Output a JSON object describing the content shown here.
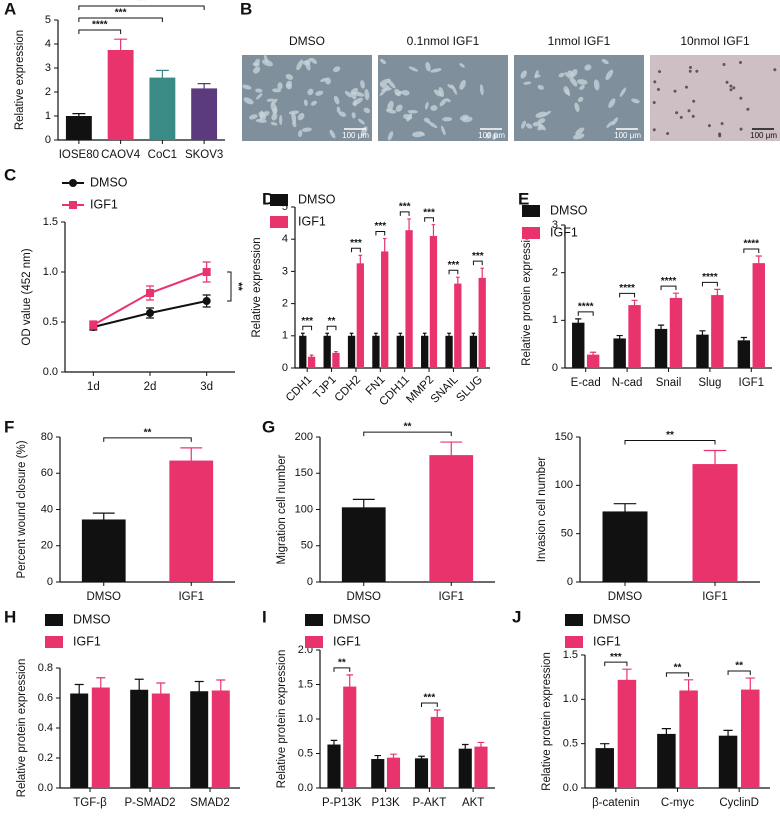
{
  "chart_data": [
    {
      "type": "bar",
      "panel": "A",
      "categories": [
        "IOSE80",
        "CAOV4",
        "CoC1",
        "SKOV3"
      ],
      "values": [
        1.0,
        3.75,
        2.6,
        2.15
      ],
      "errors": [
        0.1,
        0.45,
        0.3,
        0.2
      ],
      "colors": [
        "#111111",
        "#e8336d",
        "#3a8a85",
        "#5b3a7e"
      ],
      "ylim": [
        0,
        5
      ],
      "yticks": [
        0,
        1,
        2,
        3,
        4,
        5
      ],
      "ylabel": "Relative expression",
      "significance": [
        null,
        "****",
        "***",
        "**"
      ]
    },
    {
      "type": "line",
      "panel": "C",
      "categories": [
        "1d",
        "2d",
        "3d"
      ],
      "series": [
        {
          "name": "DMSO",
          "color": "#111111",
          "marker": "circle",
          "values": [
            0.45,
            0.59,
            0.71
          ],
          "errors": [
            0.03,
            0.05,
            0.06
          ]
        },
        {
          "name": "IGF1",
          "color": "#e8336d",
          "marker": "square",
          "values": [
            0.47,
            0.79,
            1.0
          ],
          "errors": [
            0.04,
            0.07,
            0.1
          ]
        }
      ],
      "ylim": [
        0,
        1.5
      ],
      "yticks": [
        {
          "value": 0,
          "label": "0.0"
        },
        0.5,
        {
          "value": 1,
          "label": "1.0"
        },
        1.5
      ],
      "ylabel": "OD value (452 nm)",
      "significance": "**"
    },
    {
      "type": "bar",
      "panel": "D",
      "categories": [
        "CDH1",
        "TJP1",
        "CDH2",
        "FN1",
        "CDH11",
        "MMP2",
        "SNAIL",
        "SLUG"
      ],
      "series": [
        {
          "name": "DMSO",
          "color": "#111111",
          "values": [
            1,
            1,
            1,
            1,
            1,
            1,
            1,
            1
          ],
          "errors": [
            0.08,
            0.08,
            0.08,
            0.08,
            0.08,
            0.08,
            0.08,
            0.08
          ]
        },
        {
          "name": "IGF1",
          "color": "#e8336d",
          "values": [
            0.35,
            0.47,
            3.25,
            3.62,
            4.28,
            4.1,
            2.62,
            2.8
          ],
          "errors": [
            0.05,
            0.04,
            0.25,
            0.4,
            0.35,
            0.35,
            0.2,
            0.3
          ]
        }
      ],
      "ylim": [
        0,
        5
      ],
      "yticks": [
        0,
        1,
        2,
        3,
        4,
        5
      ],
      "ylabel": "Relative expression",
      "significance": [
        "***",
        "**",
        "***",
        "***",
        "***",
        "***",
        "***",
        "***"
      ]
    },
    {
      "type": "bar",
      "panel": "E",
      "categories": [
        "E-cad",
        "N-cad",
        "Snail",
        "Slug",
        "IGF1"
      ],
      "series": [
        {
          "name": "DMSO",
          "color": "#111111",
          "values": [
            0.95,
            0.62,
            0.82,
            0.7,
            0.58
          ],
          "errors": [
            0.08,
            0.06,
            0.08,
            0.08,
            0.06
          ]
        },
        {
          "name": "IGF1",
          "color": "#e8336d",
          "values": [
            0.28,
            1.32,
            1.47,
            1.53,
            2.2
          ],
          "errors": [
            0.05,
            0.1,
            0.1,
            0.12,
            0.15
          ]
        }
      ],
      "ylim": [
        0,
        3
      ],
      "yticks": [
        0,
        1,
        2,
        3
      ],
      "ylabel": "Relative protein expression",
      "significance": [
        "****",
        "****",
        "****",
        "****",
        "****"
      ]
    },
    {
      "type": "bar",
      "panel": "F",
      "categories": [
        "DMSO",
        "IGF1"
      ],
      "values": [
        34.5,
        67
      ],
      "errors": [
        3.5,
        7
      ],
      "colors": [
        "#111111",
        "#e8336d"
      ],
      "ylim": [
        0,
        80
      ],
      "yticks": [
        0,
        20,
        40,
        60,
        80
      ],
      "ylabel": "Percent wound closure (%)",
      "significance": "**"
    },
    {
      "type": "bar",
      "panel": "G",
      "categories": [
        "DMSO",
        "IGF1"
      ],
      "values": [
        103,
        175
      ],
      "errors": [
        11,
        18
      ],
      "colors": [
        "#111111",
        "#e8336d"
      ],
      "ylim": [
        0,
        200
      ],
      "yticks": [
        0,
        50,
        100,
        150,
        200
      ],
      "ylabel": "Migration cell number",
      "significance": "**"
    },
    {
      "type": "bar",
      "categories": [
        "DMSO",
        "IGF1"
      ],
      "values": [
        73,
        122
      ],
      "errors": [
        8,
        14
      ],
      "colors": [
        "#111111",
        "#e8336d"
      ],
      "ylim": [
        0,
        150
      ],
      "yticks": [
        0,
        50,
        100,
        150
      ],
      "ylabel": "Invasion cell number",
      "significance": "**"
    },
    {
      "type": "bar",
      "panel": "H",
      "categories": [
        "TGF-β",
        "P-SMAD2",
        "SMAD2"
      ],
      "series": [
        {
          "name": "DMSO",
          "color": "#111111",
          "values": [
            0.63,
            0.655,
            0.645
          ],
          "errors": [
            0.06,
            0.07,
            0.065
          ]
        },
        {
          "name": "IGF1",
          "color": "#e8336d",
          "values": [
            0.67,
            0.63,
            0.65
          ],
          "errors": [
            0.065,
            0.07,
            0.07
          ]
        }
      ],
      "ylim": [
        0,
        0.8
      ],
      "yticks": [
        {
          "value": 0,
          "label": "0.0"
        },
        0.2,
        0.4,
        0.6,
        0.8
      ],
      "ylabel": "Relative protein expression"
    },
    {
      "type": "bar",
      "panel": "I",
      "categories": [
        "P-P13K",
        "P13K",
        "P-AKT",
        "AKT"
      ],
      "series": [
        {
          "name": "DMSO",
          "color": "#111111",
          "values": [
            0.63,
            0.42,
            0.43,
            0.57
          ],
          "errors": [
            0.06,
            0.05,
            0.03,
            0.06
          ]
        },
        {
          "name": "IGF1",
          "color": "#e8336d",
          "values": [
            1.47,
            0.44,
            1.03,
            0.6
          ],
          "errors": [
            0.17,
            0.05,
            0.1,
            0.06
          ]
        }
      ],
      "ylim": [
        0,
        2
      ],
      "yticks": [
        {
          "value": 0,
          "label": "0.0"
        },
        0.5,
        {
          "value": 1,
          "label": "1.0"
        },
        1.5,
        {
          "value": 2,
          "label": "2.0"
        }
      ],
      "ylabel": "Relative protein expression",
      "significance": [
        "**",
        null,
        "***",
        null
      ]
    },
    {
      "type": "bar",
      "panel": "J",
      "categories": [
        "β-catenin",
        "C-myc",
        "CyclinD"
      ],
      "series": [
        {
          "name": "DMSO",
          "color": "#111111",
          "values": [
            0.45,
            0.61,
            0.59
          ],
          "errors": [
            0.05,
            0.06,
            0.06
          ]
        },
        {
          "name": "IGF1",
          "color": "#e8336d",
          "values": [
            1.22,
            1.1,
            1.11
          ],
          "errors": [
            0.12,
            0.12,
            0.13
          ]
        }
      ],
      "ylim": [
        0,
        1.5
      ],
      "yticks": [
        {
          "value": 0,
          "label": "0.0"
        },
        0.5,
        {
          "value": 1,
          "label": "1.0"
        },
        1.5
      ],
      "ylabel": "Relative protein expression",
      "significance": [
        "***",
        "**",
        "**"
      ]
    }
  ],
  "micrographs": {
    "panel": "B",
    "images": [
      {
        "label": "DMSO",
        "scale": "100 μm"
      },
      {
        "label": "0.1nmol IGF1",
        "scale": "100 μm"
      },
      {
        "label": "1nmol IGF1",
        "scale": "100 μm"
      },
      {
        "label": "10nmol IGF1",
        "scale": "100 μm"
      }
    ]
  }
}
